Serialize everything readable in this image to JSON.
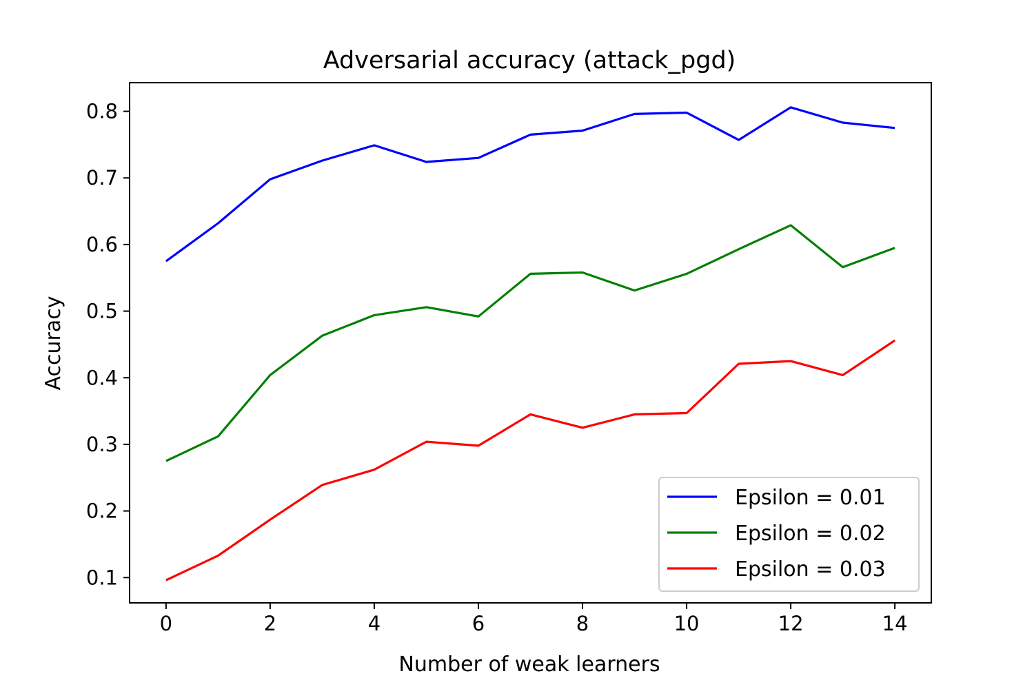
{
  "chart_data": {
    "type": "line",
    "title": "Adversarial accuracy (attack_pgd)",
    "xlabel": "Number of weak learners",
    "ylabel": "Accuracy",
    "xlim": [
      -0.7,
      14.7
    ],
    "ylim": [
      0.062,
      0.843
    ],
    "xticks": [
      0,
      2,
      4,
      6,
      8,
      10,
      12,
      14
    ],
    "xtick_labels": [
      "0",
      "2",
      "4",
      "6",
      "8",
      "10",
      "12",
      "14"
    ],
    "yticks": [
      0.1,
      0.2,
      0.3,
      0.4,
      0.5,
      0.6,
      0.7,
      0.8
    ],
    "ytick_labels": [
      "0.1",
      "0.2",
      "0.3",
      "0.4",
      "0.5",
      "0.6",
      "0.7",
      "0.8"
    ],
    "grid": false,
    "legend_position": "bottom-right",
    "x": [
      0,
      1,
      2,
      3,
      4,
      5,
      6,
      7,
      8,
      9,
      10,
      11,
      12,
      13,
      14
    ],
    "series": [
      {
        "name": "Epsilon = 0.01",
        "color": "#0000ff",
        "values": [
          0.575,
          0.632,
          0.698,
          0.726,
          0.749,
          0.724,
          0.73,
          0.765,
          0.771,
          0.796,
          0.798,
          0.757,
          0.806,
          0.783,
          0.775
        ]
      },
      {
        "name": "Epsilon = 0.02",
        "color": "#008000",
        "values": [
          0.275,
          0.312,
          0.404,
          0.463,
          0.494,
          0.506,
          0.492,
          0.556,
          0.558,
          0.531,
          0.556,
          0.593,
          0.629,
          0.566,
          0.595
        ]
      },
      {
        "name": "Epsilon = 0.03",
        "color": "#ff0000",
        "values": [
          0.096,
          0.133,
          0.187,
          0.239,
          0.262,
          0.304,
          0.298,
          0.345,
          0.325,
          0.345,
          0.347,
          0.421,
          0.425,
          0.404,
          0.456
        ]
      }
    ]
  }
}
